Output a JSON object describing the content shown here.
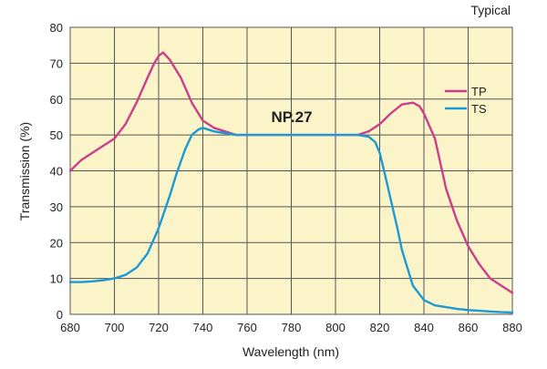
{
  "chart_data": {
    "type": "line",
    "note": "Typical",
    "annotation": "NP.27",
    "xlabel": "Wavelength (nm)",
    "ylabel": "Transmission (%)",
    "xlim": [
      680,
      880
    ],
    "ylim": [
      0,
      80
    ],
    "xticks": [
      680,
      700,
      720,
      740,
      760,
      780,
      800,
      820,
      840,
      860,
      880
    ],
    "yticks": [
      0,
      10,
      20,
      30,
      40,
      50,
      60,
      70,
      80
    ],
    "grid": true,
    "legend_position": "right",
    "background": "#fbf4c8",
    "series": [
      {
        "name": "TP",
        "color": "#cc3d8c",
        "x": [
          680,
          685,
          690,
          695,
          700,
          705,
          710,
          715,
          718,
          720,
          722,
          725,
          730,
          735,
          740,
          745,
          750,
          755,
          760,
          770,
          780,
          790,
          800,
          810,
          815,
          820,
          825,
          830,
          835,
          838,
          840,
          845,
          850,
          855,
          860,
          865,
          870,
          875,
          880
        ],
        "y": [
          40,
          43,
          45,
          47,
          49,
          53,
          59,
          66,
          70,
          72,
          73,
          71,
          66,
          59,
          54,
          52,
          51,
          50,
          50,
          50,
          50,
          50,
          50,
          50,
          51,
          53,
          56,
          58.5,
          59,
          58,
          56,
          49,
          35,
          26,
          19,
          14,
          10,
          8,
          6
        ]
      },
      {
        "name": "TS",
        "color": "#1a9ad6",
        "x": [
          680,
          685,
          690,
          695,
          700,
          705,
          710,
          715,
          720,
          725,
          728,
          732,
          735,
          738,
          740,
          745,
          750,
          755,
          760,
          770,
          780,
          790,
          800,
          810,
          815,
          818,
          820,
          822,
          825,
          828,
          830,
          835,
          840,
          845,
          850,
          855,
          860,
          865,
          870,
          875,
          880
        ],
        "y": [
          9,
          9,
          9.2,
          9.5,
          10,
          11,
          13,
          17,
          24,
          33,
          39,
          46,
          50,
          51.5,
          52,
          51,
          50.5,
          50,
          50,
          50,
          50,
          50,
          50,
          50,
          49.5,
          48,
          45,
          40,
          32,
          24,
          18,
          8,
          4,
          2.5,
          2,
          1.5,
          1.2,
          1,
          0.8,
          0.6,
          0.5
        ]
      }
    ]
  }
}
